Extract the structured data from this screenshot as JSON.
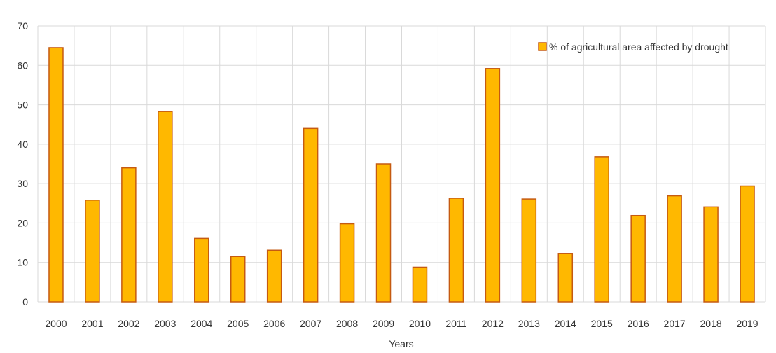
{
  "chart_data": {
    "type": "bar",
    "title": "",
    "xlabel": "Years",
    "ylabel": "",
    "ylim": [
      0,
      70
    ],
    "yticks": [
      0,
      10,
      20,
      30,
      40,
      50,
      60,
      70
    ],
    "grid": true,
    "legend_position": "top-right",
    "categories": [
      "2000",
      "2001",
      "2002",
      "2003",
      "2004",
      "2005",
      "2006",
      "2007",
      "2008",
      "2009",
      "2010",
      "2011",
      "2012",
      "2013",
      "2014",
      "2015",
      "2016",
      "2017",
      "2018",
      "2019"
    ],
    "series": [
      {
        "name": "% of agricultural area affected by drought",
        "color": "#FFB800",
        "edge_color": "#C55A11",
        "values": [
          64.5,
          25.8,
          34.0,
          48.3,
          16.1,
          11.5,
          13.1,
          44.0,
          19.8,
          35.0,
          8.8,
          26.3,
          59.2,
          26.1,
          12.3,
          36.8,
          21.9,
          26.9,
          24.1,
          29.4
        ]
      }
    ]
  }
}
